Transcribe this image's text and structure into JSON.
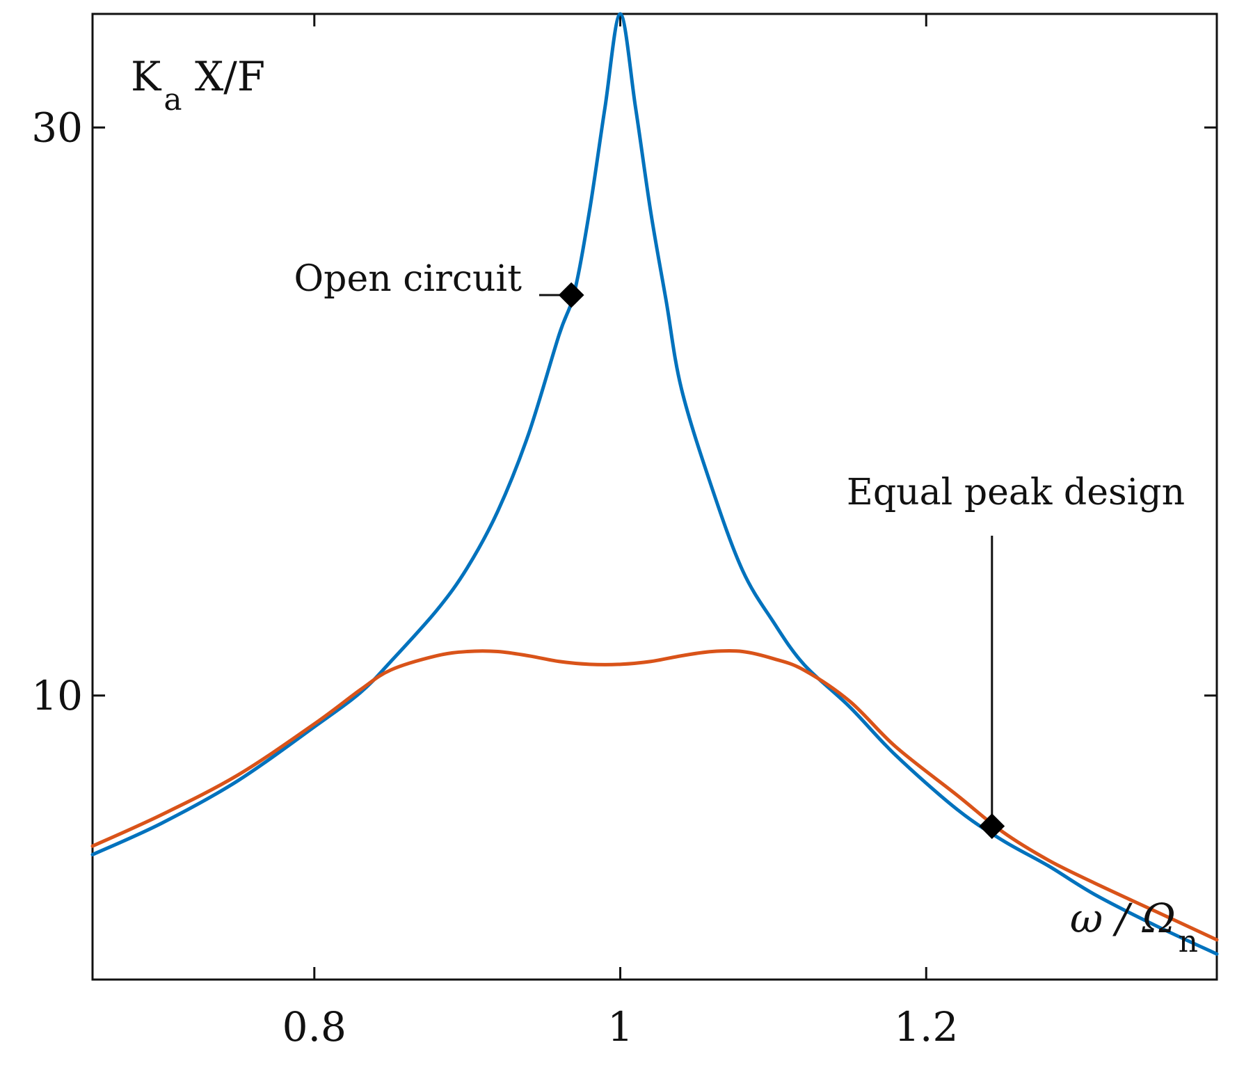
{
  "chart_data": {
    "type": "line",
    "title": "",
    "xlabel": "ω / Ω",
    "xlabel_sub": "n",
    "ylabel": "K",
    "ylabel_sub": "a",
    "ylabel_rest": " X/F",
    "xlim": [
      0.655,
      1.39
    ],
    "ylim": [
      0.0,
      34.0
    ],
    "x_ticks": [
      {
        "value": 0.8,
        "label": "0.8"
      },
      {
        "value": 1.0,
        "label": "1"
      },
      {
        "value": 1.2,
        "label": "1.2"
      }
    ],
    "y_ticks": [
      {
        "value": 10,
        "label": "10"
      },
      {
        "value": 30,
        "label": "30"
      }
    ],
    "series": [
      {
        "name": "Open circuit",
        "color": "#0072bd",
        "x": [
          0.655,
          0.7,
          0.75,
          0.8,
          0.83,
          0.85,
          0.88,
          0.9,
          0.92,
          0.94,
          0.96,
          0.97,
          0.98,
          0.99,
          1.0,
          1.01,
          1.02,
          1.03,
          1.04,
          1.06,
          1.08,
          1.1,
          1.12,
          1.15,
          1.18,
          1.22,
          1.25,
          1.28,
          1.31,
          1.35,
          1.39
        ],
        "values": [
          4.4,
          5.5,
          7.0,
          8.9,
          10.1,
          11.2,
          13.0,
          14.5,
          16.5,
          19.2,
          22.7,
          24.2,
          27.1,
          30.7,
          34.0,
          30.7,
          27.0,
          23.9,
          20.8,
          17.3,
          14.4,
          12.6,
          11.1,
          9.6,
          7.9,
          6.0,
          4.9,
          4.0,
          3.0,
          1.9,
          0.9
        ]
      },
      {
        "name": "Equal peak design",
        "color": "#d95319",
        "x": [
          0.655,
          0.7,
          0.75,
          0.8,
          0.83,
          0.85,
          0.88,
          0.9,
          0.92,
          0.94,
          0.96,
          0.98,
          1.0,
          1.02,
          1.04,
          1.06,
          1.08,
          1.1,
          1.12,
          1.15,
          1.18,
          1.22,
          1.25,
          1.28,
          1.31,
          1.35,
          1.39
        ],
        "values": [
          4.7,
          5.8,
          7.2,
          9.0,
          10.2,
          10.9,
          11.4,
          11.55,
          11.55,
          11.4,
          11.2,
          11.1,
          11.1,
          11.2,
          11.4,
          11.55,
          11.55,
          11.3,
          10.9,
          9.8,
          8.2,
          6.5,
          5.2,
          4.2,
          3.4,
          2.4,
          1.4
        ]
      }
    ],
    "annotations": [
      {
        "text": "Open circuit",
        "series": "Open circuit",
        "marker_x": 0.968,
        "marker_y": 24.1
      },
      {
        "text": "Equal peak design",
        "series": "Equal peak design",
        "marker_x": 1.243,
        "marker_y": 5.4
      }
    ]
  }
}
